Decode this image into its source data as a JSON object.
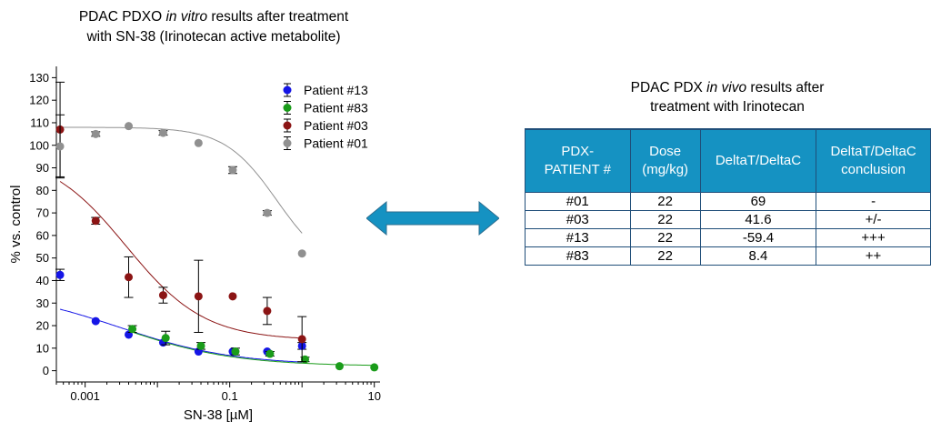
{
  "chart_title": {
    "line1_pre": "PDAC PDXO ",
    "line1_italic": "in vitro",
    "line1_post": " results after treatment",
    "line2": "with SN-38 (Irinotecan active metabolite)"
  },
  "chart_data": {
    "type": "scatter",
    "xlabel": "SN-38 [µM]",
    "ylabel": "% vs. control",
    "x_scale": "log",
    "xlim": [
      0.0004,
      12
    ],
    "ylim": [
      -5,
      135
    ],
    "x_ticks": [
      0.001,
      0.1,
      10
    ],
    "x_tick_labels": [
      "0.001",
      "0.1",
      "10"
    ],
    "y_ticks": [
      0,
      10,
      20,
      30,
      40,
      50,
      60,
      70,
      80,
      90,
      100,
      110,
      120,
      130
    ],
    "grid": false,
    "legend_position": "top-right",
    "series": [
      {
        "name": "Patient #13",
        "color": "#1515e6",
        "x": [
          0.00045,
          0.0014,
          0.004,
          0.012,
          0.037,
          0.11,
          0.33,
          1.0
        ],
        "y": [
          42.5,
          22,
          16,
          12.5,
          8.5,
          8.5,
          8.5,
          11
        ],
        "err": [
          2.5,
          0,
          0,
          0,
          0,
          0,
          0,
          1.5
        ],
        "fit": {
          "top": 36,
          "bottom": 2.5,
          "ec50": 0.003,
          "hill": 0.55
        }
      },
      {
        "name": "Patient #83",
        "color": "#1a9c1a",
        "x": [
          0.0045,
          0.013,
          0.04,
          0.12,
          0.36,
          1.1,
          3.3,
          10
        ],
        "y": [
          18.5,
          14.5,
          11,
          8.5,
          7.5,
          5,
          2,
          1.5
        ],
        "err": [
          1.5,
          3,
          1.5,
          1.5,
          1,
          1,
          0,
          0
        ],
        "fit": {
          "top": 36,
          "bottom": 2,
          "ec50": 0.003,
          "hill": 0.55
        }
      },
      {
        "name": "Patient #03",
        "color": "#8b1414",
        "x": [
          0.00045,
          0.0014,
          0.004,
          0.012,
          0.037,
          0.11,
          0.33,
          1.0
        ],
        "y": [
          107,
          66.5,
          41.5,
          33.5,
          33,
          33,
          26.5,
          14
        ],
        "err": [
          21,
          1.5,
          9,
          3.5,
          16,
          0,
          6,
          10
        ],
        "fit": {
          "top": 97,
          "bottom": 13.5,
          "ec50": 0.0037,
          "hill": 0.8
        }
      },
      {
        "name": "Patient #01",
        "color": "#909090",
        "x": [
          0.00045,
          0.0014,
          0.004,
          0.012,
          0.037,
          0.11,
          0.33,
          1.0
        ],
        "y": [
          99.5,
          105,
          108.5,
          105.5,
          101,
          89,
          70,
          52
        ],
        "err": [
          14,
          1,
          0,
          1,
          0,
          1.5,
          1,
          0
        ],
        "fit": {
          "top": 108,
          "bottom": 43,
          "ec50": 0.45,
          "hill": 1.2
        }
      }
    ]
  },
  "table_title": {
    "line1_pre": "PDAC PDX ",
    "line1_italic": "in vivo",
    "line1_post": " results after",
    "line2": "treatment with Irinotecan"
  },
  "table": {
    "headers": [
      "PDX-PATIENT #",
      "Dose (mg/kg)",
      "DeltaT/DeltaC",
      "DeltaT/DeltaC conclusion"
    ],
    "header_lines": [
      [
        "PDX-",
        "PATIENT #"
      ],
      [
        "Dose",
        "(mg/kg)"
      ],
      [
        "DeltaT/DeltaC"
      ],
      [
        "DeltaT/DeltaC",
        "conclusion"
      ]
    ],
    "rows": [
      [
        "#01",
        "22",
        "69",
        "-"
      ],
      [
        "#03",
        "22",
        "41.6",
        "+/-"
      ],
      [
        "#13",
        "22",
        "-59.4",
        "+++"
      ],
      [
        "#83",
        "22",
        "8.4",
        "++"
      ]
    ]
  },
  "colors": {
    "arrow": "#1592c2",
    "table_header": "#1592c2",
    "table_border": "#1f4e79"
  }
}
